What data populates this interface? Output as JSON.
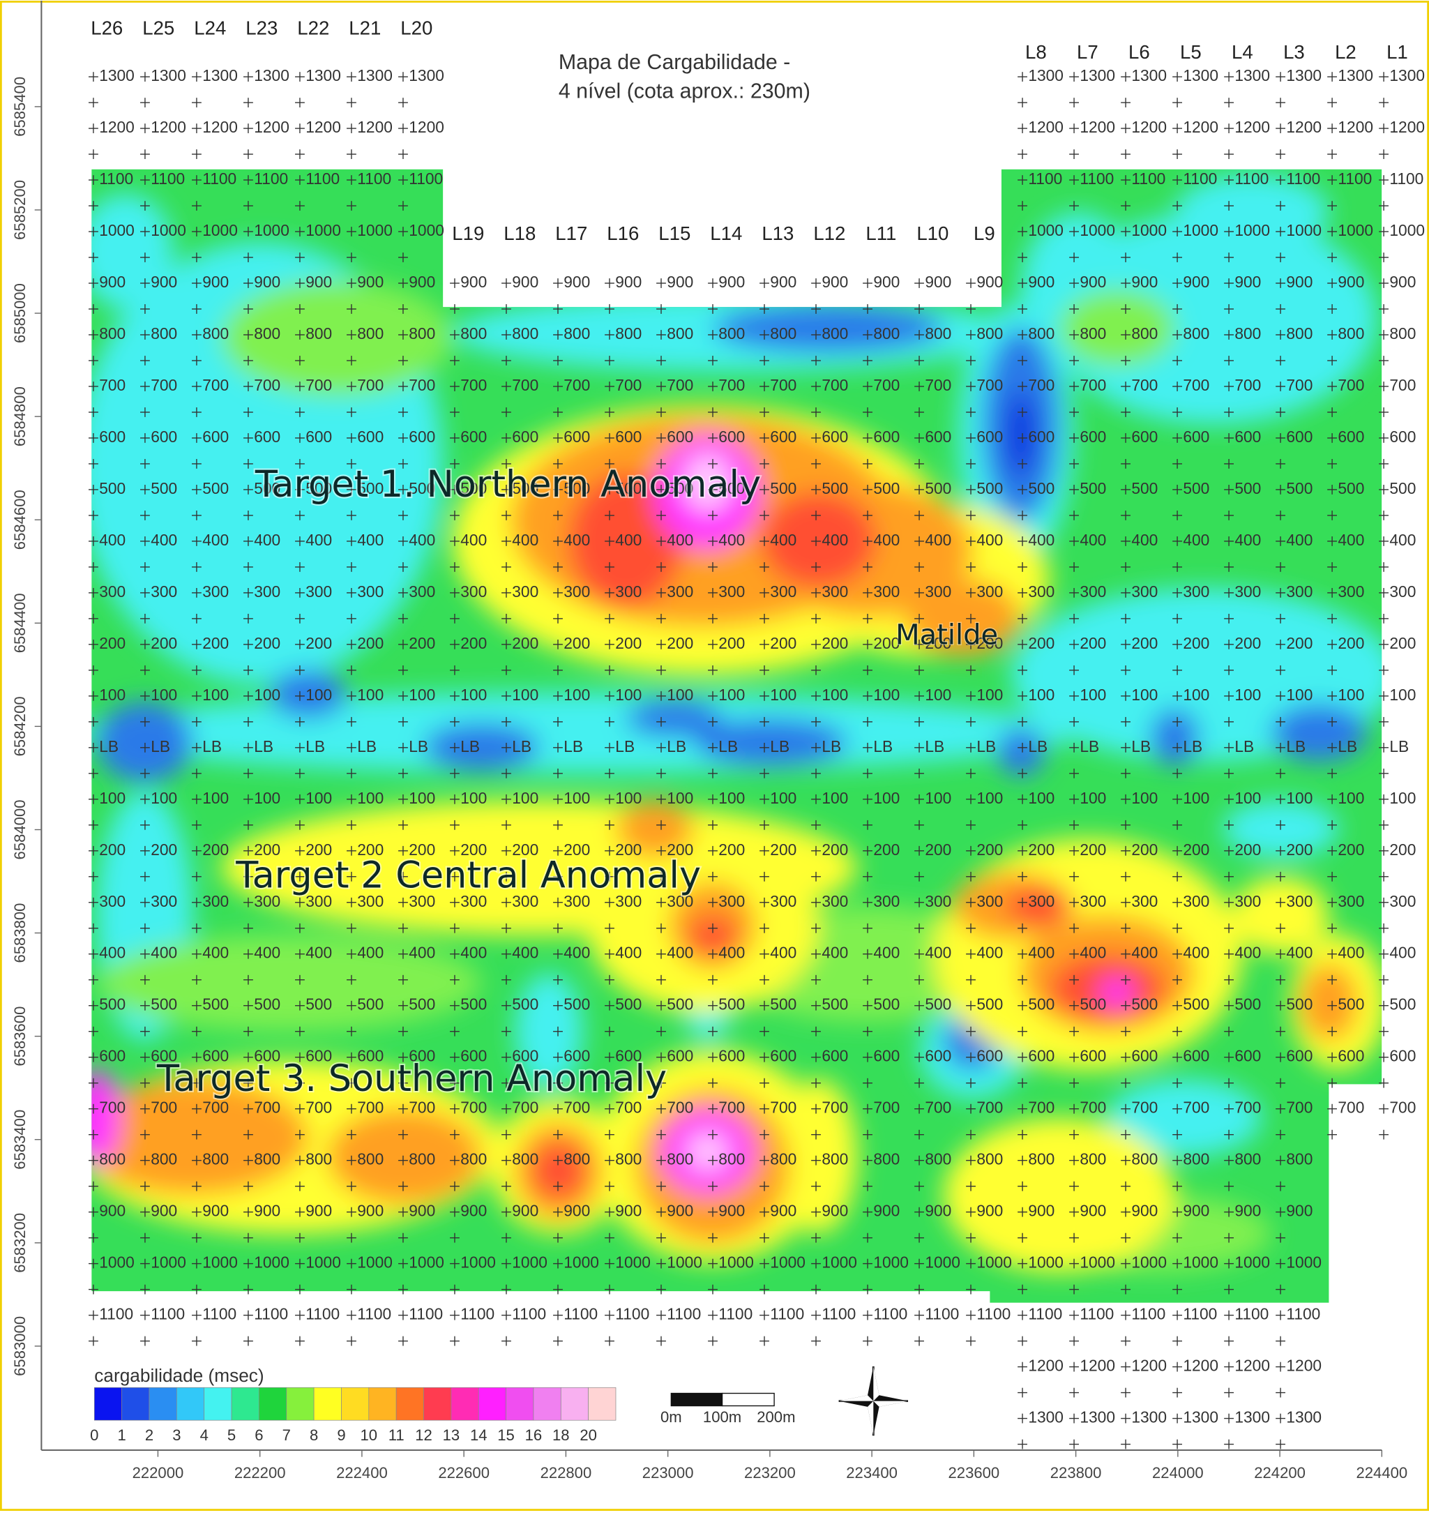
{
  "title": [
    "Mapa de Cargabilidade -",
    "4 nível (cota aprox.: 230m)"
  ],
  "lines": [
    "L26",
    "L25",
    "L24",
    "L23",
    "L22",
    "L21",
    "L20",
    "L19",
    "L18",
    "L17",
    "L16",
    "L15",
    "L14",
    "L13",
    "L12",
    "L11",
    "L10",
    "L9",
    "L8",
    "L7",
    "L6",
    "L5",
    "L4",
    "L3",
    "L2",
    "L1"
  ],
  "stations": [
    "1300",
    "1200",
    "1100",
    "1000",
    "900",
    "800",
    "700",
    "600",
    "500",
    "400",
    "300",
    "200",
    "100",
    "LB",
    "100",
    "200",
    "300",
    "400",
    "500",
    "600",
    "700",
    "800",
    "900",
    "1000",
    "1100",
    "1200",
    "1300"
  ],
  "annotations": [
    "Target 1. Northern Anomaly",
    "Target 2 Central Anomaly",
    "Target 3. Southern Anomaly",
    "Matilde"
  ],
  "legend": {
    "title": "cargabilidade (msec)",
    "ticks": [
      0,
      1,
      2,
      3,
      4,
      5,
      6,
      7,
      8,
      9,
      10,
      11,
      12,
      13,
      14,
      15,
      16,
      18,
      20
    ],
    "colors": [
      "#0a14f0",
      "#1f4fe8",
      "#2a8ef2",
      "#32c8f8",
      "#44f2f0",
      "#2ee890",
      "#1fd43c",
      "#86f03c",
      "#ffff22",
      "#ffdc22",
      "#ffb422",
      "#ff7424",
      "#ff3c50",
      "#ff2cb4",
      "#ff20ff",
      "#f04ef0",
      "#f080f0",
      "#f8b0f0",
      "#ffd4d4"
    ]
  },
  "scale_bar": [
    "0m",
    "100m",
    "200m"
  ],
  "x_axis": {
    "ticks": [
      222000,
      222200,
      222400,
      222600,
      222800,
      223000,
      223200,
      223400,
      223600,
      223800,
      224000,
      224200,
      224400
    ]
  },
  "y_axis": {
    "ticks": [
      6585400,
      6585200,
      6585000,
      6584800,
      6584600,
      6584400,
      6584200,
      6584000,
      6583800,
      6583600,
      6583400,
      6583200,
      6583000
    ]
  }
}
